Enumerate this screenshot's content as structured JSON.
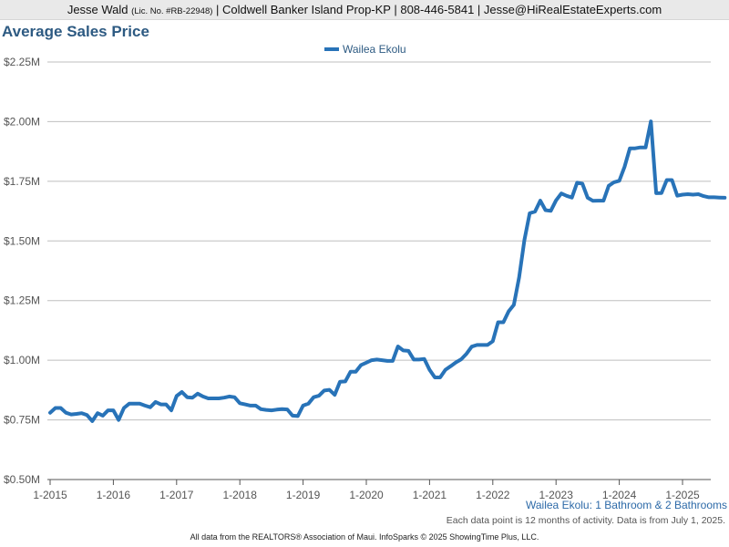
{
  "header": {
    "agent_name": "Jesse Wald",
    "license": "(Lic. No. #RB-22948)",
    "rest": "| Coldwell Banker Island Prop-KP | 808-446-5841 | Jesse@HiRealEstateExperts.com"
  },
  "note": "Each data point is 12 months of activity. Data is from July 1, 2025.",
  "footer": "All data from the REALTORS® Association of Maui. InfoSparks © 2025 ShowingTime Plus, LLC.",
  "colors": {
    "series": "#2873b8",
    "title": "#2d5a82",
    "grid": "#bfbfbf"
  },
  "chart_data": {
    "type": "line",
    "title": "Average Sales Price",
    "subtitle": "Wailea Ekolu: 1 Bathroom & 2 Bathrooms",
    "legend": "top-center",
    "grid": true,
    "ylim": [
      500000,
      2250000
    ],
    "yticks": [
      {
        "value": 500000,
        "label": "$0.50M"
      },
      {
        "value": 750000,
        "label": "$0.75M"
      },
      {
        "value": 1000000,
        "label": "$1.00M"
      },
      {
        "value": 1250000,
        "label": "$1.25M"
      },
      {
        "value": 1500000,
        "label": "$1.50M"
      },
      {
        "value": 1750000,
        "label": "$1.75M"
      },
      {
        "value": 2000000,
        "label": "$2.00M"
      },
      {
        "value": 2250000,
        "label": "$2.25M"
      }
    ],
    "xticks": [
      "1-2015",
      "1-2016",
      "1-2017",
      "1-2018",
      "1-2019",
      "1-2020",
      "1-2021",
      "1-2022",
      "1-2023",
      "1-2024",
      "1-2025"
    ],
    "x_start": "2015-01",
    "series": [
      {
        "name": "Wailea Ekolu",
        "values": [
          780000,
          800000,
          800000,
          780000,
          773000,
          775000,
          778000,
          770000,
          745000,
          778000,
          768000,
          790000,
          790000,
          750000,
          800000,
          818000,
          818000,
          818000,
          810000,
          803000,
          825000,
          815000,
          815000,
          790000,
          850000,
          867000,
          845000,
          843000,
          860000,
          848000,
          840000,
          840000,
          840000,
          843000,
          848000,
          845000,
          820000,
          815000,
          810000,
          810000,
          795000,
          792000,
          790000,
          793000,
          795000,
          794000,
          768000,
          766000,
          810000,
          818000,
          845000,
          851000,
          873000,
          876000,
          855000,
          910000,
          911000,
          952000,
          952000,
          980000,
          990000,
          1000000,
          1003000,
          1000000,
          997000,
          997000,
          1058000,
          1041000,
          1039000,
          1003000,
          1003000,
          1005000,
          960000,
          928000,
          928000,
          960000,
          975000,
          991000,
          1004000,
          1027000,
          1057000,
          1064000,
          1064000,
          1064000,
          1080000,
          1159000,
          1159000,
          1205000,
          1232000,
          1348000,
          1504000,
          1616000,
          1623000,
          1669000,
          1629000,
          1626000,
          1670000,
          1699000,
          1689000,
          1682000,
          1744000,
          1740000,
          1681000,
          1668000,
          1669000,
          1669000,
          1731000,
          1746000,
          1752000,
          1811000,
          1888000,
          1888000,
          1892000,
          1892000,
          2001000,
          1700000,
          1701000,
          1755000,
          1755000,
          1690000,
          1694000,
          1696000,
          1694000,
          1696000,
          1688000,
          1683000,
          1683000,
          1682000,
          1681000
        ]
      }
    ]
  }
}
